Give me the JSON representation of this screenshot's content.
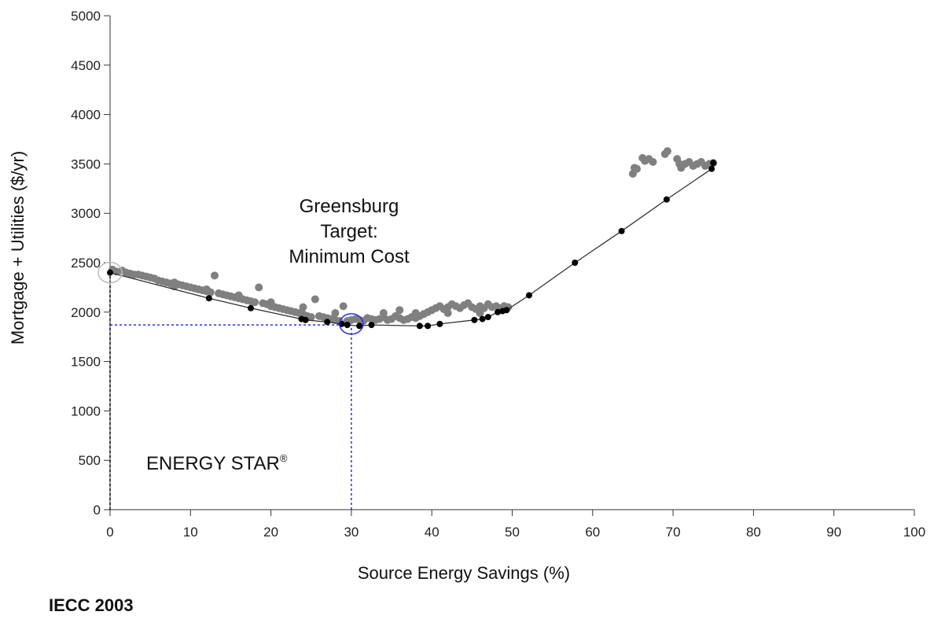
{
  "chart_data": {
    "type": "scatter",
    "xlabel": "Source Energy Savings (%)",
    "ylabel": "Mortgage + Utilities ($/yr)",
    "xlim": [
      0,
      100
    ],
    "ylim": [
      0,
      5000
    ],
    "x_ticks": [
      0,
      10,
      20,
      30,
      40,
      50,
      60,
      70,
      80,
      90,
      100
    ],
    "y_ticks": [
      0,
      500,
      1000,
      1500,
      2000,
      2500,
      3000,
      3500,
      4000,
      4500,
      5000
    ],
    "grid": false,
    "annotations": {
      "greensburg_line1": "Greensburg",
      "greensburg_line2": "Target:",
      "greensburg_line3": "Minimum Cost",
      "energy_star": "ENERGY STAR",
      "energy_star_mark": "®",
      "iecc": "IECC 2003"
    },
    "series": [
      {
        "color": "#808080",
        "marker": "circle",
        "points": [
          [
            0.3,
            2430
          ],
          [
            0.8,
            2410
          ],
          [
            1.5,
            2420
          ],
          [
            2,
            2400
          ],
          [
            2.5,
            2390
          ],
          [
            3,
            2380
          ],
          [
            3.5,
            2380
          ],
          [
            4,
            2370
          ],
          [
            4.5,
            2360
          ],
          [
            5,
            2350
          ],
          [
            5.5,
            2340
          ],
          [
            6,
            2320
          ],
          [
            6.5,
            2310
          ],
          [
            7,
            2300
          ],
          [
            7.5,
            2290
          ],
          [
            8,
            2300
          ],
          [
            8.5,
            2280
          ],
          [
            9,
            2270
          ],
          [
            9.5,
            2260
          ],
          [
            10,
            2250
          ],
          [
            10.5,
            2240
          ],
          [
            11,
            2230
          ],
          [
            11.5,
            2220
          ],
          [
            12,
            2210
          ],
          [
            12.5,
            2200
          ],
          [
            13,
            2370
          ],
          [
            13.5,
            2190
          ],
          [
            14,
            2180
          ],
          [
            14.5,
            2170
          ],
          [
            15,
            2160
          ],
          [
            15.5,
            2150
          ],
          [
            16,
            2140
          ],
          [
            16.5,
            2130
          ],
          [
            17,
            2120
          ],
          [
            17.5,
            2110
          ],
          [
            18,
            2100
          ],
          [
            18.5,
            2250
          ],
          [
            19,
            2090
          ],
          [
            19.5,
            2080
          ],
          [
            20,
            2060
          ],
          [
            20.5,
            2050
          ],
          [
            21,
            2040
          ],
          [
            21.5,
            2030
          ],
          [
            22,
            2020
          ],
          [
            22.5,
            2010
          ],
          [
            23,
            2000
          ],
          [
            23.5,
            1990
          ],
          [
            24,
            1980
          ],
          [
            24.5,
            1960
          ],
          [
            25,
            1950
          ],
          [
            25.5,
            2130
          ],
          [
            26,
            1960
          ],
          [
            26.5,
            1950
          ],
          [
            27,
            1940
          ],
          [
            27.5,
            1930
          ],
          [
            28,
            1920
          ],
          [
            28.5,
            1910
          ],
          [
            29,
            2060
          ],
          [
            29.5,
            1910
          ],
          [
            30,
            1920
          ],
          [
            30.5,
            1930
          ],
          [
            31,
            1920
          ],
          [
            31.5,
            1910
          ],
          [
            32,
            1940
          ],
          [
            32.5,
            1930
          ],
          [
            33,
            1920
          ],
          [
            33.5,
            1930
          ],
          [
            34,
            1950
          ],
          [
            34.5,
            1920
          ],
          [
            35,
            1930
          ],
          [
            35.5,
            1960
          ],
          [
            36,
            1940
          ],
          [
            36.5,
            1920
          ],
          [
            37,
            1930
          ],
          [
            37.5,
            1950
          ],
          [
            38,
            1940
          ],
          [
            38.5,
            1960
          ],
          [
            39,
            1980
          ],
          [
            39.5,
            2000
          ],
          [
            40,
            2020
          ],
          [
            40.5,
            2040
          ],
          [
            41,
            2060
          ],
          [
            41.5,
            2030
          ],
          [
            42,
            2050
          ],
          [
            42.5,
            2080
          ],
          [
            43,
            2060
          ],
          [
            43.5,
            2040
          ],
          [
            44,
            2070
          ],
          [
            44.5,
            2090
          ],
          [
            45,
            2050
          ],
          [
            45.5,
            2030
          ],
          [
            46,
            2060
          ],
          [
            46.5,
            2040
          ],
          [
            47,
            2080
          ],
          [
            47.5,
            2050
          ],
          [
            48,
            2060
          ],
          [
            48.5,
            2040
          ],
          [
            49,
            2060
          ],
          [
            49.5,
            2050
          ],
          [
            24,
            2050
          ],
          [
            20,
            2100
          ],
          [
            16,
            2170
          ],
          [
            12,
            2230
          ],
          [
            8,
            2260
          ],
          [
            28,
            1990
          ],
          [
            34,
            1990
          ],
          [
            38,
            1990
          ],
          [
            42,
            1990
          ],
          [
            46,
            1990
          ],
          [
            36,
            2020
          ],
          [
            65,
            3400
          ],
          [
            65.2,
            3460
          ],
          [
            65.5,
            3450
          ],
          [
            66.2,
            3560
          ],
          [
            66.5,
            3530
          ],
          [
            67,
            3550
          ],
          [
            67.5,
            3520
          ],
          [
            69,
            3600
          ],
          [
            69.3,
            3630
          ],
          [
            70.5,
            3550
          ],
          [
            70.8,
            3500
          ],
          [
            71,
            3460
          ],
          [
            71.5,
            3500
          ],
          [
            72,
            3520
          ],
          [
            72.5,
            3480
          ],
          [
            73,
            3500
          ],
          [
            73.5,
            3520
          ],
          [
            74,
            3480
          ],
          [
            74.5,
            3500
          ],
          [
            75,
            3510
          ]
        ]
      },
      {
        "color": "#000000",
        "marker": "circle",
        "connected": true,
        "points": [
          [
            0,
            2400
          ],
          [
            12.3,
            2140
          ],
          [
            17.5,
            2040
          ],
          [
            23.8,
            1930
          ],
          [
            24.3,
            1920
          ],
          [
            27,
            1900
          ],
          [
            28.8,
            1880
          ],
          [
            29.5,
            1870
          ],
          [
            31,
            1860
          ],
          [
            32.5,
            1870
          ],
          [
            38.5,
            1860
          ],
          [
            39.5,
            1860
          ],
          [
            41,
            1880
          ],
          [
            45.3,
            1920
          ],
          [
            46.3,
            1930
          ],
          [
            47,
            1950
          ],
          [
            48.2,
            2000
          ],
          [
            48.8,
            2010
          ],
          [
            49.3,
            2020
          ],
          [
            52.1,
            2170
          ],
          [
            57.8,
            2500
          ],
          [
            63.6,
            2820
          ],
          [
            69.2,
            3140
          ],
          [
            74.8,
            3450
          ],
          [
            75,
            3510
          ]
        ]
      }
    ],
    "reference_lines": [
      {
        "style": "dotted",
        "color": "#000000",
        "x": 0,
        "from_y": 0,
        "to_y": 2400
      },
      {
        "style": "dotted",
        "color": "#2d2de0",
        "x": 30,
        "from_y": 0,
        "to_y": 1870
      },
      {
        "style": "dotted",
        "color": "#2d2de0",
        "y": 1870,
        "from_x": 0,
        "to_x": 30
      }
    ],
    "highlight_circles": [
      {
        "x": 30,
        "y": 1880,
        "color": "#2d2de0"
      },
      {
        "x": 0,
        "y": 2400,
        "color": "#bdbdbd"
      }
    ]
  }
}
